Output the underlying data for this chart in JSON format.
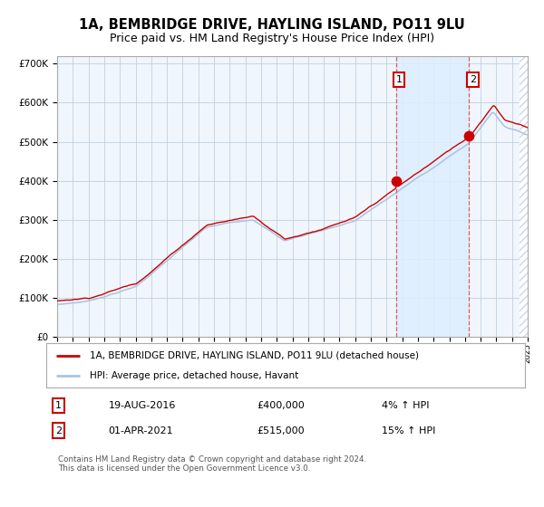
{
  "title1": "1A, BEMBRIDGE DRIVE, HAYLING ISLAND, PO11 9LU",
  "title2": "Price paid vs. HM Land Registry's House Price Index (HPI)",
  "ylim": [
    0,
    720000
  ],
  "yticks": [
    0,
    100000,
    200000,
    300000,
    400000,
    500000,
    600000,
    700000
  ],
  "ytick_labels": [
    "£0",
    "£100K",
    "£200K",
    "£300K",
    "£400K",
    "£500K",
    "£600K",
    "£700K"
  ],
  "sale1_date": "19-AUG-2016",
  "sale1_price": 400000,
  "sale2_date": "01-APR-2021",
  "sale2_price": 515000,
  "legend_line1": "1A, BEMBRIDGE DRIVE, HAYLING ISLAND, PO11 9LU (detached house)",
  "legend_line2": "HPI: Average price, detached house, Havant",
  "footnote": "Contains HM Land Registry data © Crown copyright and database right 2024.\nThis data is licensed under the Open Government Licence v3.0.",
  "hpi_color": "#a8c4e0",
  "price_color": "#cc0000",
  "marker_color": "#cc0000",
  "shade_color": "#ddeeff",
  "grid_color": "#c0d0e0",
  "bg_color": "#f0f6fc",
  "hatch_color": "#c8d8e8",
  "vline_color": "#dd4444",
  "title_fontsize": 10.5,
  "subtitle_fontsize": 9,
  "tick_fontsize": 7.5,
  "anno_fontsize": 8,
  "legend_fontsize": 7.5
}
